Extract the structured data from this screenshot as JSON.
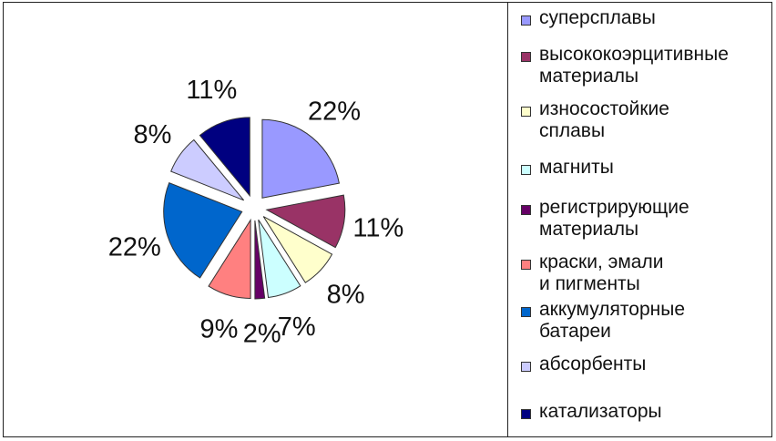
{
  "chart_data": {
    "type": "pie",
    "categories": [
      "суперсплавы",
      "высококоэрцитивные материалы",
      "износостойкие сплавы",
      "магниты",
      "регистрирующие материалы",
      "краски, эмали и пигменты",
      "аккумуляторные батареи",
      "абсорбенты",
      "катализаторы"
    ],
    "values": [
      22,
      11,
      8,
      7,
      2,
      9,
      22,
      8,
      11
    ],
    "data_labels": [
      "22%",
      "11%",
      "8%",
      "7%",
      "2%",
      "9%",
      "22%",
      "8%",
      "11%"
    ],
    "colors": [
      "#9999ff",
      "#993366",
      "#ffffcc",
      "#ccffff",
      "#660066",
      "#ff8080",
      "#0066cc",
      "#ccccff",
      "#000080"
    ],
    "legend_placement": "right",
    "exploded": true
  },
  "legend": {
    "items": [
      "суперсплавы",
      "высококоэрцитивные\nматериалы",
      "износостойкие\nсплавы",
      "магниты",
      "регистрирующие\nматериалы",
      "краски, эмали\nи пигменты",
      "аккумуляторные\nбатареи",
      "абсорбенты",
      "катализаторы"
    ]
  }
}
